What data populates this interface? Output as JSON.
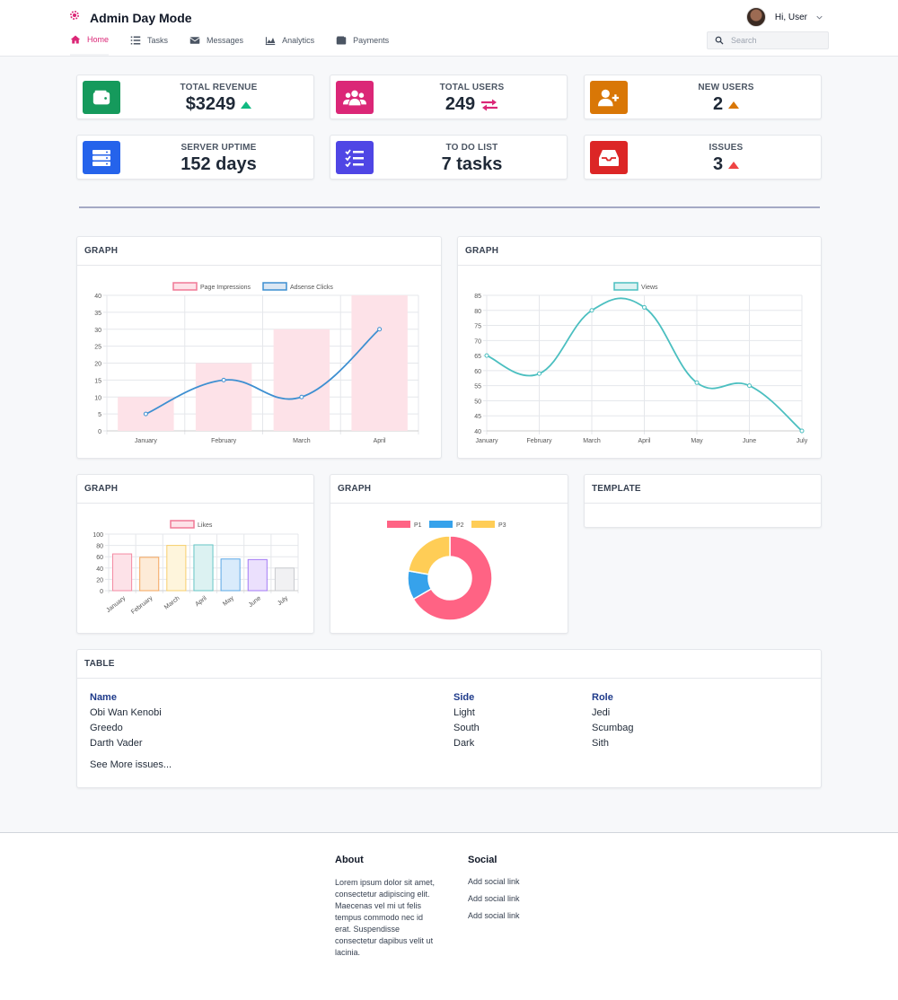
{
  "app": {
    "title": "Admin Day Mode",
    "user_greeting": "Hi, User"
  },
  "nav": {
    "items": [
      {
        "label": "Home",
        "icon": "home-icon",
        "active": true
      },
      {
        "label": "Tasks",
        "icon": "list-icon",
        "active": false
      },
      {
        "label": "Messages",
        "icon": "envelope-icon",
        "active": false
      },
      {
        "label": "Analytics",
        "icon": "chart-icon",
        "active": false
      },
      {
        "label": "Payments",
        "icon": "wallet-icon",
        "active": false
      }
    ],
    "search_placeholder": "Search"
  },
  "stats": [
    {
      "label": "TOTAL REVENUE",
      "value": "$3249",
      "color": "#159a5c",
      "indicator": "up",
      "indicator_color": "#10b981"
    },
    {
      "label": "TOTAL USERS",
      "value": "249",
      "color": "#db2777",
      "indicator": "exchange",
      "indicator_color": "#db2777"
    },
    {
      "label": "NEW USERS",
      "value": "2",
      "color": "#d97706",
      "indicator": "up",
      "indicator_color": "#d97706"
    },
    {
      "label": "SERVER UPTIME",
      "value": "152 days",
      "color": "#2563eb",
      "indicator": "none",
      "indicator_color": ""
    },
    {
      "label": "TO DO LIST",
      "value": "7 tasks",
      "color": "#4f46e5",
      "indicator": "none",
      "indicator_color": ""
    },
    {
      "label": "ISSUES",
      "value": "3",
      "color": "#dc2626",
      "indicator": "up",
      "indicator_color": "#ef4444"
    }
  ],
  "panels": {
    "graph1_title": "GRAPH",
    "graph2_title": "GRAPH",
    "graph3_title": "GRAPH",
    "graph4_title": "GRAPH",
    "template_title": "TEMPLATE",
    "table_title": "TABLE"
  },
  "chart_data": [
    {
      "type": "bar",
      "categories": [
        "January",
        "February",
        "March",
        "April"
      ],
      "series": [
        {
          "name": "Page Impressions",
          "kind": "bar",
          "values": [
            10,
            20,
            30,
            40
          ],
          "color": "#fde2e8",
          "border": "#f07896"
        },
        {
          "name": "Adsense Clicks",
          "kind": "line",
          "values": [
            5,
            15,
            10,
            30
          ],
          "color": "#3d8fd1"
        }
      ],
      "ylim": [
        0,
        40
      ],
      "yticks": [
        0,
        5,
        10,
        15,
        20,
        25,
        30,
        35,
        40
      ],
      "legend": "top",
      "grid": true
    },
    {
      "type": "line",
      "categories": [
        "January",
        "February",
        "March",
        "April",
        "May",
        "June",
        "July"
      ],
      "series": [
        {
          "name": "Views",
          "values": [
            65,
            59,
            80,
            81,
            56,
            55,
            40
          ],
          "color": "#4bbfc0"
        }
      ],
      "ylim": [
        40,
        85
      ],
      "yticks": [
        40,
        45,
        50,
        55,
        60,
        65,
        70,
        75,
        80,
        85
      ],
      "legend": "top",
      "grid": true
    },
    {
      "type": "bar",
      "categories": [
        "January",
        "February",
        "March",
        "April",
        "May",
        "June",
        "July"
      ],
      "series": [
        {
          "name": "Likes",
          "values": [
            65,
            59,
            80,
            81,
            56,
            55,
            40
          ]
        }
      ],
      "bar_colors": [
        "#fde2e8",
        "#fdebd7",
        "#fef5dc",
        "#dcf2f2",
        "#d9ebfb",
        "#ebe0fd",
        "#f1f1f3"
      ],
      "bar_borders": [
        "#f48aa3",
        "#f5a55b",
        "#f8cf6b",
        "#66c5c5",
        "#5ca8e6",
        "#a37af5",
        "#c9cbcf"
      ],
      "ylim": [
        0,
        100
      ],
      "yticks": [
        0,
        20,
        40,
        60,
        80,
        100
      ],
      "legend": "top",
      "grid": true
    },
    {
      "type": "pie",
      "donut": true,
      "categories": [
        "P1",
        "P2",
        "P3"
      ],
      "values": [
        300,
        50,
        100
      ],
      "colors": [
        "#ff6384",
        "#36a2eb",
        "#ffcd56"
      ],
      "legend": "top"
    }
  ],
  "table": {
    "columns": [
      "Name",
      "Side",
      "Role"
    ],
    "rows": [
      [
        "Obi Wan Kenobi",
        "Light",
        "Jedi"
      ],
      [
        "Greedo",
        "South",
        "Scumbag"
      ],
      [
        "Darth Vader",
        "Dark",
        "Sith"
      ]
    ],
    "see_more": "See More issues..."
  },
  "footer": {
    "about_title": "About",
    "about_text": "Lorem ipsum dolor sit amet, consectetur adipiscing elit. Maecenas vel mi ut felis tempus commodo nec id erat. Suspendisse consectetur dapibus velit ut lacinia.",
    "social_title": "Social",
    "social_links": [
      "Add social link",
      "Add social link",
      "Add social link"
    ]
  },
  "colors": {
    "accent": "#db2777",
    "header_text": "#111827",
    "table_header": "#1e3a8a"
  }
}
